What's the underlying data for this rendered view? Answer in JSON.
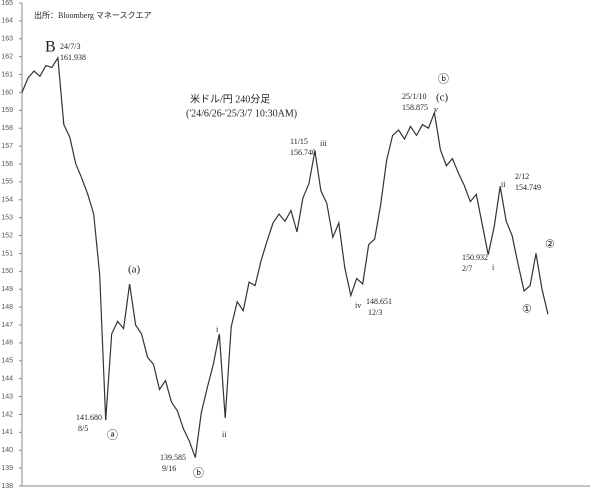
{
  "chart_data": {
    "type": "line",
    "title": "米ドル/円 240分足",
    "subtitle": "('24/6/26-'25/3/7 10:30AM)",
    "source": "出所：Bloomberg マネースクエア",
    "series": [
      {
        "name": "USD/JPY",
        "color": "#333333",
        "values": [
          160.0,
          160.8,
          161.2,
          160.9,
          161.5,
          161.4,
          161.938,
          158.2,
          157.5,
          156.0,
          155.2,
          154.3,
          153.2,
          149.8,
          141.68,
          146.5,
          147.2,
          146.8,
          149.3,
          147.0,
          146.5,
          145.2,
          144.8,
          143.4,
          143.9,
          142.7,
          142.2,
          141.2,
          140.5,
          139.585,
          142.1,
          143.5,
          144.8,
          146.5,
          141.8,
          146.9,
          148.3,
          147.8,
          149.4,
          149.2,
          150.6,
          151.7,
          152.7,
          153.2,
          152.8,
          153.4,
          152.2,
          154.1,
          154.9,
          156.74,
          154.5,
          153.8,
          151.9,
          152.7,
          150.2,
          148.651,
          149.6,
          149.3,
          151.5,
          151.8,
          153.7,
          156.2,
          157.6,
          157.9,
          157.4,
          158.1,
          157.6,
          158.2,
          158.0,
          158.875,
          156.8,
          155.9,
          156.3,
          155.5,
          154.8,
          153.9,
          154.3,
          152.6,
          150.932,
          152.5,
          154.749,
          152.8,
          152.0,
          150.4,
          148.9,
          149.2,
          151.0,
          149.0,
          147.6
        ]
      }
    ],
    "ylim": [
      138,
      165
    ],
    "yticks": [
      138,
      139,
      140,
      141,
      142,
      143,
      144,
      145,
      146,
      147,
      148,
      149,
      150,
      151,
      152,
      153,
      154,
      155,
      156,
      157,
      158,
      159,
      160,
      161,
      162,
      163,
      164,
      165
    ],
    "annotations": [
      {
        "text": "B"
      },
      {
        "text": "24/7/3"
      },
      {
        "text": "161.938"
      },
      {
        "text": "(a)"
      },
      {
        "text": "141.680"
      },
      {
        "text": "8/5"
      },
      {
        "text": "ⓐ"
      },
      {
        "text": "139.585"
      },
      {
        "text": "9/16"
      },
      {
        "text": "ⓑ"
      },
      {
        "text": "i"
      },
      {
        "text": "ii"
      },
      {
        "text": "11/15"
      },
      {
        "text": "156.740"
      },
      {
        "text": "iii"
      },
      {
        "text": "iv"
      },
      {
        "text": "148.651"
      },
      {
        "text": "12/3"
      },
      {
        "text": "ⓑ"
      },
      {
        "text": "25/1/10"
      },
      {
        "text": "158.875"
      },
      {
        "text": "(c)"
      },
      {
        "text": "v"
      },
      {
        "text": "150.932"
      },
      {
        "text": "2/7"
      },
      {
        "text": "i"
      },
      {
        "text": "ii"
      },
      {
        "text": "2/12"
      },
      {
        "text": "154.749"
      },
      {
        "text": "①"
      },
      {
        "text": "②"
      }
    ]
  }
}
